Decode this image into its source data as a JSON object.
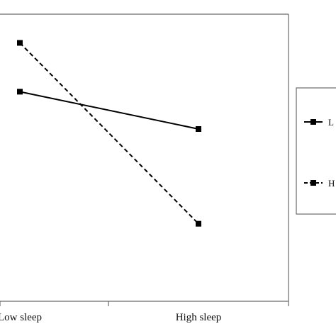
{
  "chart_data": {
    "type": "line",
    "categories": [
      "Low sleep",
      "High sleep"
    ],
    "ylim": [
      0,
      100
    ],
    "grid": false,
    "legend_position": "right",
    "series": [
      {
        "name": "L",
        "style": "solid",
        "marker": "square",
        "color": "#000000",
        "values": [
          73,
          60
        ]
      },
      {
        "name": "H",
        "style": "dashed",
        "marker": "square",
        "color": "#000000",
        "values": [
          90,
          27
        ]
      }
    ]
  }
}
